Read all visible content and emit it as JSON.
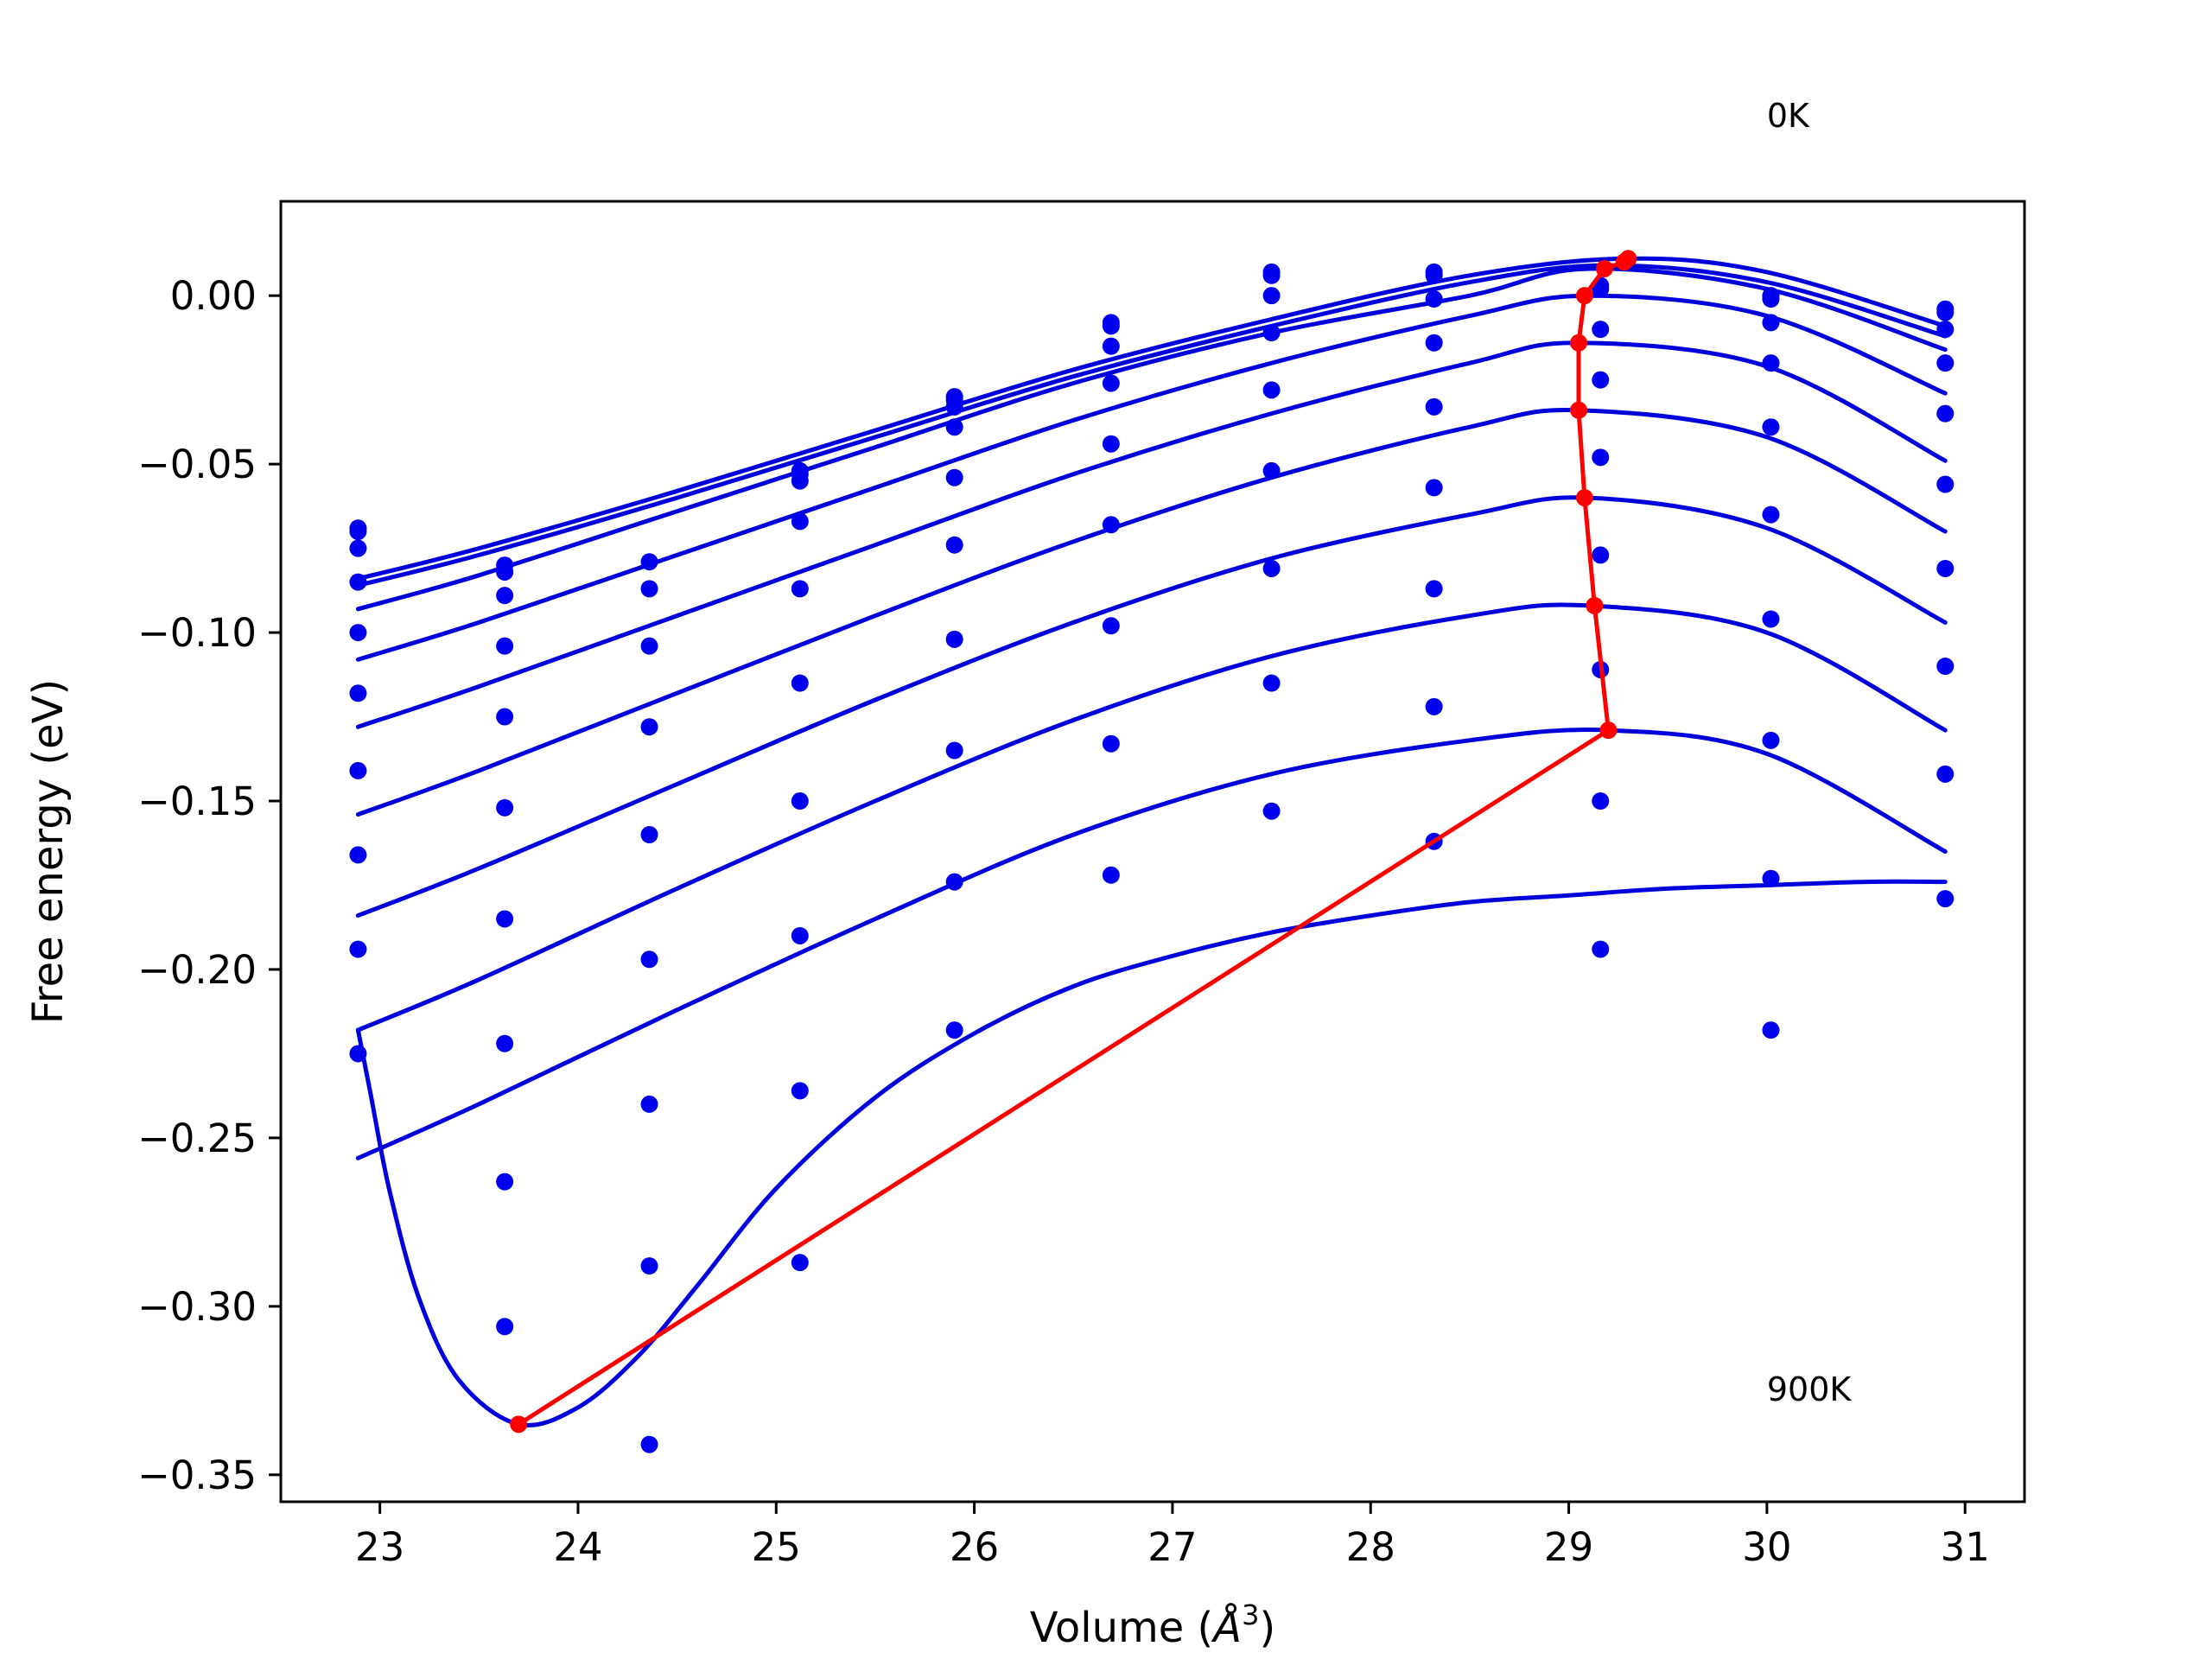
{
  "chart_data": {
    "type": "line",
    "xlabel_prefix": "Volume (",
    "xlabel_unit_base": "Å",
    "xlabel_unit_sup": "3",
    "xlabel_suffix": ")",
    "ylabel": "Free energy (eV)",
    "xlim": [
      22.5,
      31.3
    ],
    "ylim": [
      -0.358,
      0.028
    ],
    "xticks": [
      {
        "value": 23,
        "label": "23"
      },
      {
        "value": 24,
        "label": "24"
      },
      {
        "value": 25,
        "label": "25"
      },
      {
        "value": 26,
        "label": "26"
      },
      {
        "value": 27,
        "label": "27"
      },
      {
        "value": 28,
        "label": "28"
      },
      {
        "value": 29,
        "label": "29"
      },
      {
        "value": 30,
        "label": "30"
      },
      {
        "value": 31,
        "label": "31"
      }
    ],
    "yticks": [
      {
        "value": 0.0,
        "label": "0.00"
      },
      {
        "value": -0.05,
        "label": "−0.05"
      },
      {
        "value": -0.1,
        "label": "−0.10"
      },
      {
        "value": -0.15,
        "label": "−0.15"
      },
      {
        "value": -0.2,
        "label": "−0.20"
      },
      {
        "value": -0.25,
        "label": "−0.25"
      },
      {
        "value": -0.3,
        "label": "−0.30"
      },
      {
        "value": -0.35,
        "label": "−0.35"
      }
    ],
    "annotations": [
      {
        "text": "0K",
        "x": 30.0,
        "y": 0.05
      },
      {
        "text": "900K",
        "x": 30.0,
        "y": -0.328
      }
    ],
    "volumes": [
      22.89,
      23.63,
      24.36,
      25.12,
      25.9,
      26.69,
      27.5,
      28.32,
      29.16,
      30.02,
      30.9
    ],
    "scatter_series": [
      {
        "values": [
          -0.069,
          -0.08,
          null,
          -0.052,
          -0.03,
          -0.008,
          0.007,
          0.007,
          0.003,
          0.0,
          -0.004
        ]
      },
      {
        "values": [
          -0.07,
          -0.082,
          null,
          -0.053,
          -0.031,
          -0.009,
          0.006,
          0.006,
          0.002,
          -0.001,
          -0.005
        ]
      },
      {
        "values": [
          -0.075,
          -0.082,
          -0.079,
          -0.055,
          -0.033,
          -0.015,
          0.0,
          -0.001,
          -0.01,
          -0.008,
          -0.01
        ]
      },
      {
        "values": [
          -0.085,
          -0.089,
          -0.087,
          -0.067,
          -0.039,
          -0.026,
          -0.011,
          -0.014,
          -0.025,
          -0.02,
          -0.02
        ]
      },
      {
        "values": [
          -0.1,
          -0.104,
          -0.104,
          -0.087,
          -0.054,
          -0.044,
          -0.028,
          -0.033,
          -0.048,
          -0.039,
          -0.035
        ]
      },
      {
        "values": [
          -0.118,
          -0.125,
          -0.128,
          -0.115,
          -0.074,
          -0.068,
          -0.052,
          -0.057,
          -0.077,
          -0.065,
          -0.056
        ]
      },
      {
        "values": [
          -0.141,
          -0.152,
          -0.16,
          -0.15,
          -0.102,
          -0.098,
          -0.081,
          -0.087,
          -0.111,
          -0.096,
          -0.081
        ]
      },
      {
        "values": [
          -0.166,
          -0.185,
          -0.197,
          -0.19,
          -0.135,
          -0.133,
          -0.115,
          -0.122,
          -0.15,
          -0.132,
          -0.11
        ]
      },
      {
        "values": [
          -0.194,
          -0.222,
          -0.24,
          -0.236,
          -0.174,
          -0.172,
          -0.153,
          -0.162,
          -0.194,
          -0.173,
          -0.142
        ]
      },
      {
        "values": [
          -0.225,
          -0.263,
          -0.288,
          -0.287,
          -0.218,
          null,
          null,
          null,
          null,
          -0.218,
          -0.179
        ]
      },
      {
        "values": [
          null,
          -0.306,
          -0.341,
          null,
          null,
          null,
          null,
          null,
          null,
          null,
          null
        ]
      }
    ],
    "fit_curves": [
      {
        "x": [
          22.89,
          23.5,
          24.5,
          25.5,
          26.5,
          27.5,
          28.5,
          29.3,
          30.0,
          30.9
        ],
        "y": [
          -0.084,
          -0.075,
          -0.058,
          -0.04,
          -0.022,
          -0.007,
          0.006,
          0.011,
          0.007,
          -0.009
        ]
      },
      {
        "x": [
          22.89,
          23.5,
          24.5,
          25.5,
          26.5,
          27.5,
          28.5,
          29.2,
          30.0,
          30.9
        ],
        "y": [
          -0.086,
          -0.077,
          -0.06,
          -0.042,
          -0.024,
          -0.009,
          0.004,
          0.009,
          0.004,
          -0.012
        ]
      },
      {
        "x": [
          22.89,
          23.5,
          24.5,
          25.5,
          26.5,
          27.5,
          28.5,
          29.1,
          30.0,
          30.9
        ],
        "y": [
          -0.093,
          -0.083,
          -0.064,
          -0.045,
          -0.026,
          -0.011,
          0.0,
          0.008,
          0.002,
          -0.016
        ]
      },
      {
        "x": [
          22.89,
          23.5,
          24.5,
          25.5,
          26.5,
          27.5,
          28.5,
          29.1,
          30.0,
          30.9
        ],
        "y": [
          -0.108,
          -0.097,
          -0.077,
          -0.057,
          -0.037,
          -0.02,
          -0.006,
          0.0,
          -0.006,
          -0.029
        ]
      },
      {
        "x": [
          22.89,
          23.5,
          24.5,
          25.5,
          26.5,
          27.5,
          28.5,
          29.05,
          30.0,
          30.9
        ],
        "y": [
          -0.128,
          -0.116,
          -0.095,
          -0.074,
          -0.053,
          -0.035,
          -0.02,
          -0.014,
          -0.021,
          -0.049
        ]
      },
      {
        "x": [
          22.89,
          23.5,
          24.5,
          25.5,
          26.5,
          27.5,
          28.5,
          29.05,
          30.0,
          30.9
        ],
        "y": [
          -0.154,
          -0.141,
          -0.118,
          -0.095,
          -0.073,
          -0.054,
          -0.039,
          -0.034,
          -0.042,
          -0.07
        ]
      },
      {
        "x": [
          22.89,
          23.5,
          24.5,
          25.5,
          26.5,
          27.5,
          28.5,
          29.1,
          30.0,
          30.9
        ],
        "y": [
          -0.184,
          -0.17,
          -0.145,
          -0.12,
          -0.097,
          -0.078,
          -0.065,
          -0.06,
          -0.069,
          -0.097
        ]
      },
      {
        "x": [
          22.89,
          23.5,
          24.5,
          25.5,
          26.5,
          27.5,
          28.5,
          29.1,
          30.0,
          30.9
        ],
        "y": [
          -0.218,
          -0.203,
          -0.176,
          -0.15,
          -0.126,
          -0.107,
          -0.095,
          -0.092,
          -0.1,
          -0.129
        ]
      },
      {
        "x": [
          22.89,
          23.5,
          24.5,
          25.5,
          26.5,
          27.5,
          28.5,
          29.2,
          30.0,
          30.9
        ],
        "y": [
          -0.256,
          -0.24,
          -0.212,
          -0.185,
          -0.16,
          -0.142,
          -0.132,
          -0.129,
          -0.136,
          -0.165
        ]
      },
      {
        "x": [
          22.89,
          22.95,
          23.05,
          23.2,
          23.4,
          23.7,
          24.0,
          24.3,
          24.6,
          25.0,
          25.5,
          26.0,
          26.5,
          27.0,
          27.5,
          28.0,
          28.5,
          29.0,
          29.5,
          30.0,
          30.5,
          30.9
        ],
        "y": [
          -0.218,
          -0.236,
          -0.266,
          -0.298,
          -0.322,
          -0.335,
          -0.33,
          -0.315,
          -0.294,
          -0.265,
          -0.238,
          -0.219,
          -0.205,
          -0.196,
          -0.189,
          -0.184,
          -0.18,
          -0.178,
          -0.176,
          -0.175,
          -0.174,
          -0.174
        ]
      }
    ],
    "minima_path": {
      "x": [
        29.3,
        29.28,
        29.18,
        29.08,
        29.05,
        29.05,
        29.08,
        29.13,
        29.2,
        23.7
      ],
      "y": [
        0.011,
        0.01,
        0.008,
        0.0,
        -0.014,
        -0.034,
        -0.06,
        -0.092,
        -0.129,
        -0.335
      ]
    },
    "colors": {
      "scatter": "#0000ee",
      "fit": "#0000dd",
      "minima": "#ff0000"
    }
  }
}
